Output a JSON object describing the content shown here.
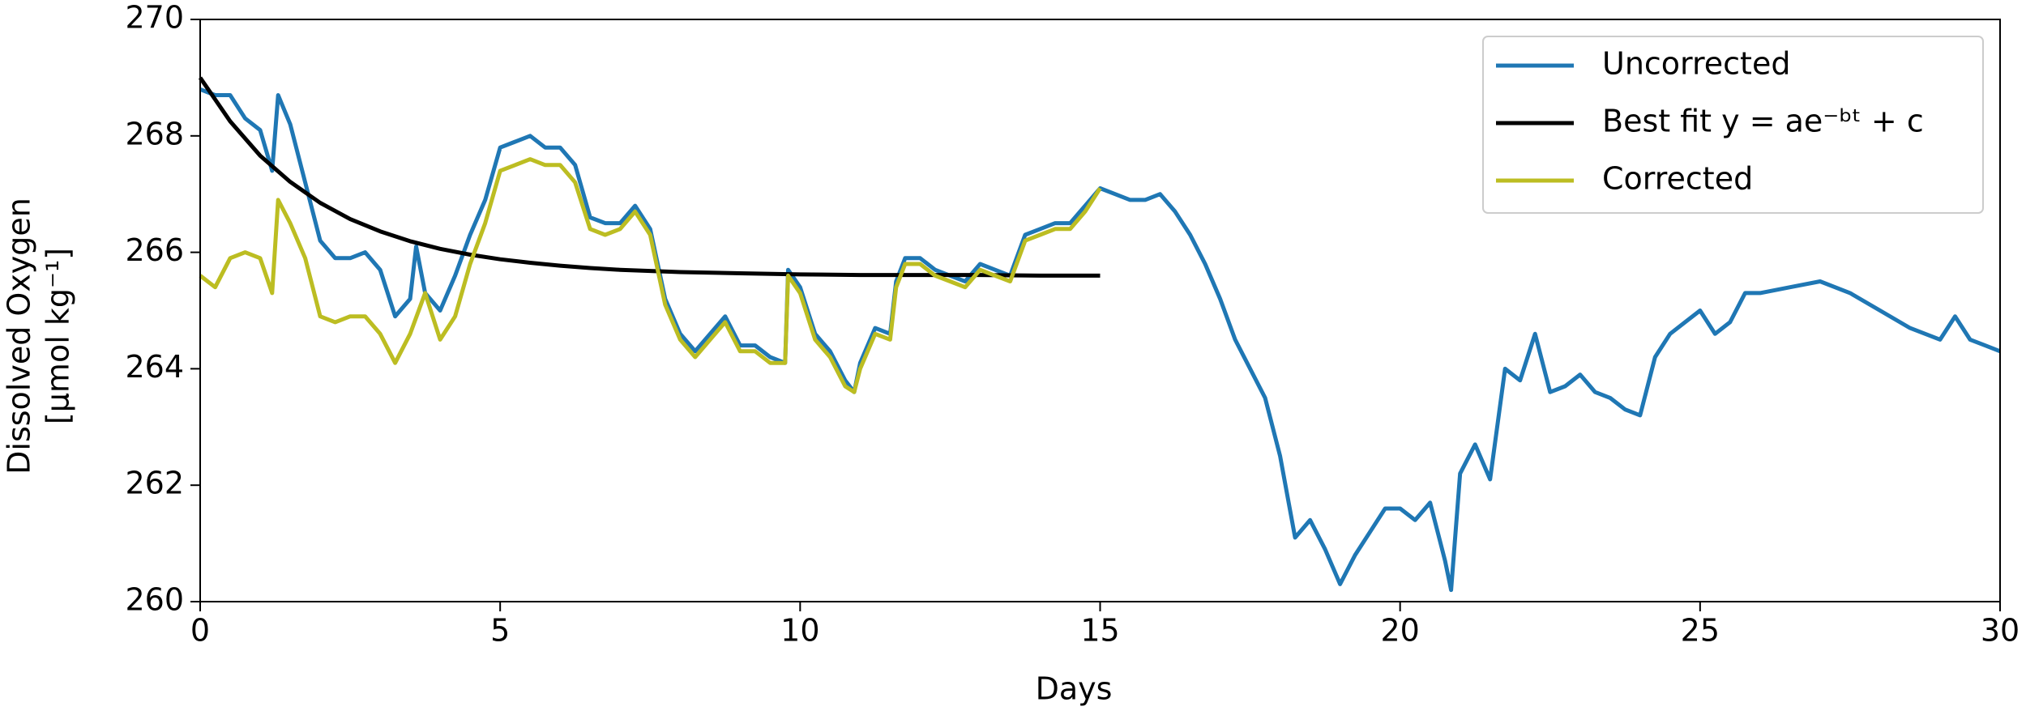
{
  "chart_data": {
    "type": "line",
    "xlabel": "Days",
    "ylabel": [
      "Dissolved Oxygen",
      "[μmol kg⁻¹]"
    ],
    "xlim": [
      0,
      30
    ],
    "xticks": [
      0,
      5,
      10,
      15,
      20,
      25,
      30
    ],
    "ylim": [
      260,
      270
    ],
    "yticks": [
      260,
      262,
      264,
      266,
      268,
      270
    ],
    "legend": "upper right",
    "series": [
      {
        "name": "Uncorrected",
        "color": "#1f77b4",
        "x": [
          0,
          0.25,
          0.5,
          0.75,
          1.0,
          1.2,
          1.3,
          1.5,
          1.75,
          2.0,
          2.25,
          2.5,
          2.75,
          3.0,
          3.25,
          3.5,
          3.6,
          3.75,
          4.0,
          4.25,
          4.5,
          4.75,
          5.0,
          5.25,
          5.5,
          5.75,
          6.0,
          6.25,
          6.5,
          6.75,
          7.0,
          7.25,
          7.5,
          7.75,
          8.0,
          8.25,
          8.5,
          8.75,
          9.0,
          9.25,
          9.5,
          9.75,
          9.8,
          10.0,
          10.25,
          10.5,
          10.75,
          10.9,
          11.0,
          11.25,
          11.5,
          11.6,
          11.75,
          12.0,
          12.25,
          12.5,
          12.75,
          13.0,
          13.25,
          13.5,
          13.75,
          14.0,
          14.25,
          14.5,
          14.75,
          15.0,
          15.25,
          15.5,
          15.75,
          16.0,
          16.25,
          16.5,
          16.75,
          17.0,
          17.25,
          17.5,
          17.75,
          18.0,
          18.25,
          18.5,
          18.75,
          19.0,
          19.25,
          19.5,
          19.75,
          20.0,
          20.25,
          20.5,
          20.75,
          20.85,
          21.0,
          21.25,
          21.5,
          21.75,
          22.0,
          22.25,
          22.5,
          22.75,
          23.0,
          23.25,
          23.5,
          23.75,
          24.0,
          24.25,
          24.5,
          24.75,
          25.0,
          25.25,
          25.5,
          25.75,
          26.0,
          26.5,
          27.0,
          27.5,
          28.0,
          28.5,
          29.0,
          29.25,
          29.5,
          29.75,
          30.0
        ],
        "values": [
          268.8,
          268.7,
          268.7,
          268.3,
          268.1,
          267.4,
          268.7,
          268.2,
          267.2,
          266.2,
          265.9,
          265.9,
          266.0,
          265.7,
          264.9,
          265.2,
          266.1,
          265.3,
          265.0,
          265.6,
          266.3,
          266.9,
          267.8,
          267.9,
          268.0,
          267.8,
          267.8,
          267.5,
          266.6,
          266.5,
          266.5,
          266.8,
          266.4,
          265.2,
          264.6,
          264.3,
          264.6,
          264.9,
          264.4,
          264.4,
          264.2,
          264.1,
          265.7,
          265.4,
          264.6,
          264.3,
          263.8,
          263.6,
          264.1,
          264.7,
          264.6,
          265.5,
          265.9,
          265.9,
          265.7,
          265.6,
          265.5,
          265.8,
          265.7,
          265.6,
          266.3,
          266.4,
          266.5,
          266.5,
          266.8,
          267.1,
          267.0,
          266.9,
          266.9,
          267.0,
          266.7,
          266.3,
          265.8,
          265.2,
          264.5,
          264.0,
          263.5,
          262.5,
          261.1,
          261.4,
          260.9,
          260.3,
          260.8,
          261.2,
          261.6,
          261.6,
          261.4,
          261.7,
          260.7,
          260.2,
          262.2,
          262.7,
          262.1,
          264.0,
          263.8,
          264.6,
          263.6,
          263.7,
          263.9,
          263.6,
          263.5,
          263.3,
          263.2,
          264.2,
          264.6,
          264.8,
          265.0,
          264.6,
          264.8,
          265.3,
          265.3,
          265.4,
          265.5,
          265.3,
          265.0,
          264.7,
          264.5,
          264.9,
          264.5,
          264.4,
          264.3
        ]
      },
      {
        "name": "Best fit y = ae⁻ᵇᵗ + c",
        "color": "#000000",
        "x": [
          0,
          0.5,
          1,
          1.5,
          2,
          2.5,
          3,
          3.5,
          4,
          4.5,
          5,
          5.5,
          6,
          6.5,
          7,
          7.5,
          8,
          9,
          10,
          11,
          12,
          13,
          14,
          15
        ],
        "values": [
          269.0,
          268.25,
          267.66,
          267.21,
          266.85,
          266.57,
          266.36,
          266.19,
          266.06,
          265.96,
          265.88,
          265.82,
          265.77,
          265.73,
          265.7,
          265.68,
          265.66,
          265.64,
          265.62,
          265.61,
          265.61,
          265.61,
          265.6,
          265.6
        ]
      },
      {
        "name": "Corrected",
        "color": "#bcbd22",
        "x": [
          0,
          0.25,
          0.5,
          0.75,
          1.0,
          1.2,
          1.3,
          1.5,
          1.75,
          2.0,
          2.25,
          2.5,
          2.75,
          3.0,
          3.25,
          3.5,
          3.75,
          4.0,
          4.25,
          4.5,
          4.75,
          5.0,
          5.25,
          5.5,
          5.75,
          6.0,
          6.25,
          6.5,
          6.75,
          7.0,
          7.25,
          7.5,
          7.75,
          8.0,
          8.25,
          8.5,
          8.75,
          9.0,
          9.25,
          9.5,
          9.75,
          9.8,
          10.0,
          10.25,
          10.5,
          10.75,
          10.9,
          11.0,
          11.25,
          11.5,
          11.6,
          11.75,
          12.0,
          12.25,
          12.5,
          12.75,
          13.0,
          13.25,
          13.5,
          13.75,
          14.0,
          14.25,
          14.5,
          14.75,
          15.0
        ],
        "values": [
          265.6,
          265.4,
          265.9,
          266.0,
          265.9,
          265.3,
          266.9,
          266.5,
          265.9,
          264.9,
          264.8,
          264.9,
          264.9,
          264.6,
          264.1,
          264.6,
          265.3,
          264.5,
          264.9,
          265.8,
          266.5,
          267.4,
          267.5,
          267.6,
          267.5,
          267.5,
          267.2,
          266.4,
          266.3,
          266.4,
          266.7,
          266.3,
          265.1,
          264.5,
          264.2,
          264.5,
          264.8,
          264.3,
          264.3,
          264.1,
          264.1,
          265.6,
          265.3,
          264.5,
          264.2,
          263.7,
          263.6,
          264.0,
          264.6,
          264.5,
          265.4,
          265.8,
          265.8,
          265.6,
          265.5,
          265.4,
          265.7,
          265.6,
          265.5,
          266.2,
          266.3,
          266.4,
          266.4,
          266.7,
          267.1
        ]
      }
    ]
  }
}
